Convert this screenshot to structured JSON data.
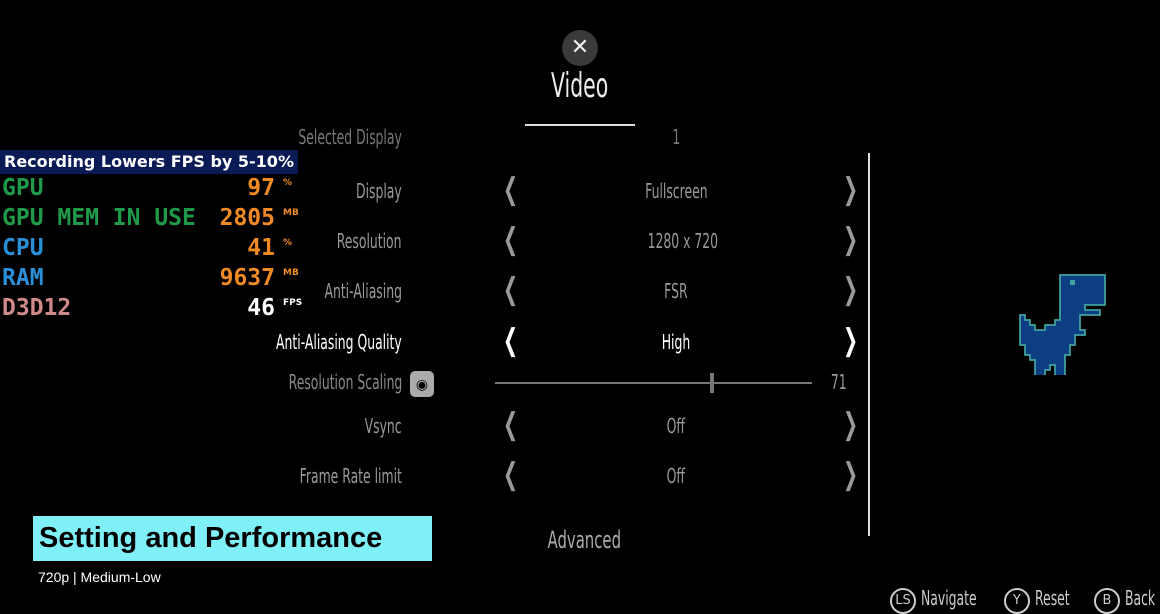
{
  "header": {
    "title": "Video",
    "close_icon": "close-icon"
  },
  "settings": [
    {
      "label": "Selected Display",
      "value": "1"
    },
    {
      "label": "Display",
      "value": "Fullscreen"
    },
    {
      "label": "Resolution",
      "value": "1280 x 720"
    },
    {
      "label": "Anti-Aliasing",
      "value": "FSR"
    },
    {
      "label": "Anti-Aliasing Quality",
      "value": "High"
    },
    {
      "label": "Vsync",
      "value": "Off"
    },
    {
      "label": "Frame Rate limit",
      "value": "Off"
    }
  ],
  "slider": {
    "label": "Resolution Scaling",
    "value": "71",
    "fraction": 0.68,
    "icon": "lock-eye-icon"
  },
  "advanced": "Advanced",
  "footer": [
    {
      "key": "LS",
      "label": "Navigate"
    },
    {
      "key": "Y",
      "label": "Reset"
    },
    {
      "key": "B",
      "label": "Back"
    }
  ],
  "overlay": {
    "banner": "Recording Lowers FPS by 5-10%",
    "stats": [
      {
        "name": "GPU",
        "value": "97",
        "unit": "%",
        "color": "#1f9a4a",
        "value_color": "#f08a24"
      },
      {
        "name": "GPU MEM IN USE",
        "value": "2805",
        "unit": "MB",
        "color": "#1f9a4a",
        "value_color": "#f08a24"
      },
      {
        "name": "CPU",
        "value": "41",
        "unit": "%",
        "color": "#2a8fd6",
        "value_color": "#f08a24"
      },
      {
        "name": "RAM",
        "value": "9637",
        "unit": "MB",
        "color": "#2a8fd6",
        "value_color": "#f08a24"
      },
      {
        "name": "D3D12",
        "value": "46",
        "unit": "FPS",
        "color": "#d08a8a",
        "value_color": "#ffffff"
      }
    ],
    "title": "Setting and Performance",
    "subtitle": "720p | Medium-Low"
  }
}
